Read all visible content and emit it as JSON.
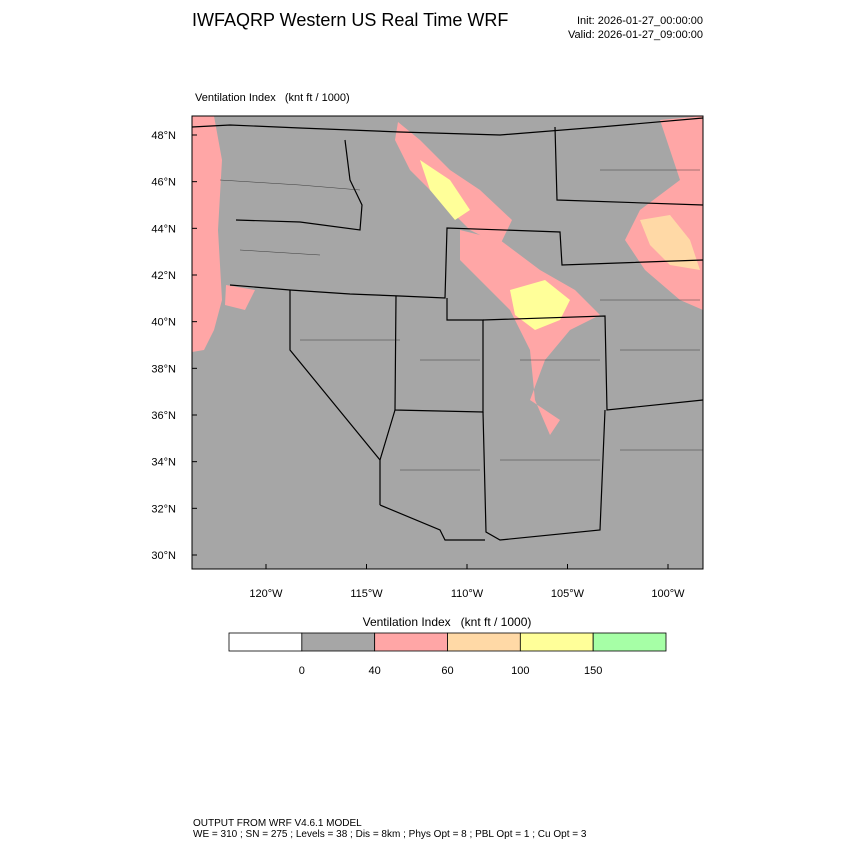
{
  "header": {
    "title": "IWFAQRP Western US Real Time WRF",
    "init": "Init: 2026-01-27_00:00:00",
    "valid": "Valid: 2026-01-27_09:00:00"
  },
  "map": {
    "field_label": "Ventilation Index   (knt ft / 1000)",
    "lat_labels": [
      "48°N",
      "46°N",
      "44°N",
      "42°N",
      "40°N",
      "38°N",
      "36°N",
      "34°N",
      "32°N",
      "30°N"
    ],
    "lon_labels": [
      "120°W",
      "115°W",
      "110°W",
      "105°W",
      "100°W"
    ]
  },
  "colorbar": {
    "title": "Ventilation Index   (knt ft / 1000)",
    "colors": [
      "#ffffff",
      "#a6a6a6",
      "#ffa6a6",
      "#ffd9a6",
      "#ffff99",
      "#a6ffa6"
    ],
    "labels": [
      0,
      40,
      60,
      100,
      150
    ]
  },
  "footer": {
    "line1": "OUTPUT FROM WRF V4.6.1 MODEL",
    "line2": "WE = 310 ; SN = 275 ; Levels = 38 ; Dis = 8km ; Phys Opt = 8 ; PBL Opt = 1 ; Cu Opt = 3"
  }
}
